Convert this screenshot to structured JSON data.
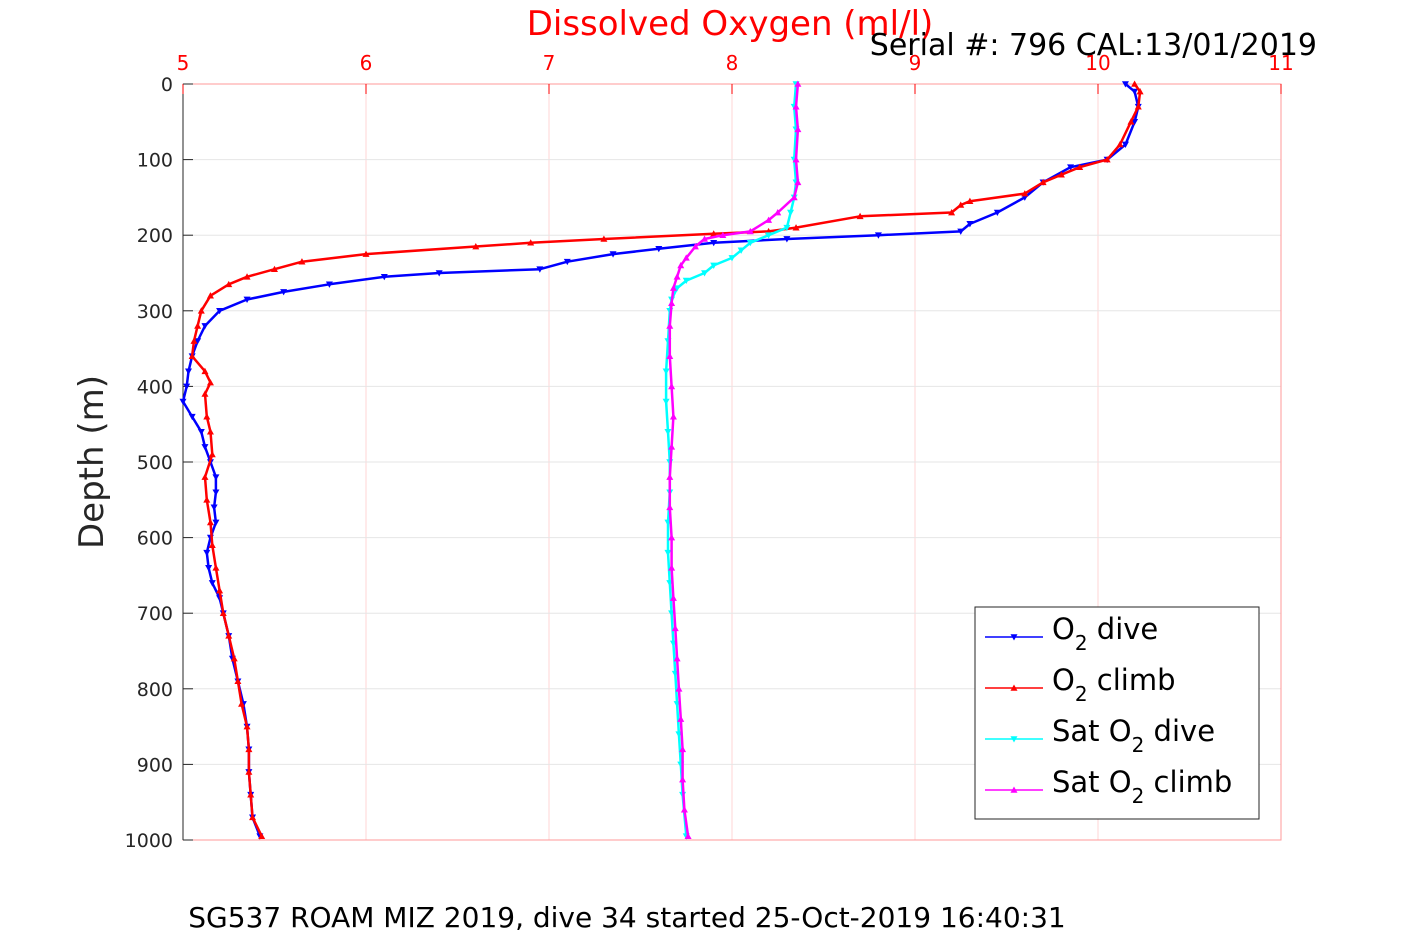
{
  "chart_data": {
    "type": "line",
    "title": "Dissolved Oxygen (ml/l)",
    "serial": "Serial #: 796  CAL:13/01/2019",
    "ylabel": "Depth (m)",
    "caption": "SG537 ROAM MIZ 2019, dive 34 started 25-Oct-2019 16:40:31",
    "xlim": [
      5,
      11
    ],
    "ylim": [
      0,
      1000
    ],
    "y_reversed": true,
    "x_axis_position": "top",
    "x_ticks": [
      "5",
      "6",
      "7",
      "8",
      "9",
      "10",
      "11"
    ],
    "y_ticks": [
      "0",
      "100",
      "200",
      "300",
      "400",
      "500",
      "600",
      "700",
      "800",
      "900",
      "1000"
    ],
    "grid": true,
    "legend_position": "bottom-right",
    "series": [
      {
        "name": "O2 dive",
        "legend_main": "O",
        "legend_sub": "2",
        "legend_rest": " dive",
        "color": "#0000ff",
        "marker": "triangle-down",
        "points": [
          [
            10.15,
            0
          ],
          [
            10.2,
            10
          ],
          [
            10.22,
            30
          ],
          [
            10.2,
            50
          ],
          [
            10.15,
            80
          ],
          [
            10.05,
            100
          ],
          [
            9.85,
            110
          ],
          [
            9.7,
            130
          ],
          [
            9.6,
            150
          ],
          [
            9.45,
            170
          ],
          [
            9.3,
            185
          ],
          [
            9.25,
            195
          ],
          [
            8.8,
            200
          ],
          [
            8.3,
            205
          ],
          [
            7.9,
            210
          ],
          [
            7.6,
            218
          ],
          [
            7.35,
            225
          ],
          [
            7.1,
            235
          ],
          [
            6.95,
            245
          ],
          [
            6.4,
            250
          ],
          [
            6.1,
            255
          ],
          [
            5.8,
            265
          ],
          [
            5.55,
            275
          ],
          [
            5.35,
            285
          ],
          [
            5.2,
            300
          ],
          [
            5.12,
            320
          ],
          [
            5.08,
            340
          ],
          [
            5.05,
            360
          ],
          [
            5.03,
            380
          ],
          [
            5.02,
            400
          ],
          [
            5.0,
            420
          ],
          [
            5.05,
            440
          ],
          [
            5.1,
            460
          ],
          [
            5.12,
            480
          ],
          [
            5.15,
            500
          ],
          [
            5.18,
            520
          ],
          [
            5.18,
            540
          ],
          [
            5.17,
            560
          ],
          [
            5.18,
            580
          ],
          [
            5.15,
            600
          ],
          [
            5.13,
            620
          ],
          [
            5.14,
            640
          ],
          [
            5.16,
            660
          ],
          [
            5.2,
            680
          ],
          [
            5.22,
            700
          ],
          [
            5.25,
            730
          ],
          [
            5.27,
            760
          ],
          [
            5.3,
            790
          ],
          [
            5.33,
            820
          ],
          [
            5.35,
            850
          ],
          [
            5.36,
            880
          ],
          [
            5.36,
            910
          ],
          [
            5.37,
            940
          ],
          [
            5.38,
            970
          ],
          [
            5.42,
            995
          ]
        ]
      },
      {
        "name": "O2 climb",
        "legend_main": "O",
        "legend_sub": "2",
        "legend_rest": " climb",
        "color": "#ff0000",
        "marker": "triangle-up",
        "points": [
          [
            10.2,
            0
          ],
          [
            10.23,
            10
          ],
          [
            10.22,
            30
          ],
          [
            10.18,
            50
          ],
          [
            10.12,
            80
          ],
          [
            10.05,
            100
          ],
          [
            9.9,
            110
          ],
          [
            9.8,
            120
          ],
          [
            9.7,
            130
          ],
          [
            9.6,
            145
          ],
          [
            9.3,
            155
          ],
          [
            9.25,
            160
          ],
          [
            9.2,
            170
          ],
          [
            8.7,
            175
          ],
          [
            8.35,
            190
          ],
          [
            8.2,
            195
          ],
          [
            7.9,
            198
          ],
          [
            7.3,
            205
          ],
          [
            6.9,
            210
          ],
          [
            6.6,
            215
          ],
          [
            6.0,
            225
          ],
          [
            5.65,
            235
          ],
          [
            5.5,
            245
          ],
          [
            5.35,
            255
          ],
          [
            5.25,
            265
          ],
          [
            5.15,
            280
          ],
          [
            5.1,
            300
          ],
          [
            5.08,
            320
          ],
          [
            5.06,
            340
          ],
          [
            5.05,
            360
          ],
          [
            5.12,
            380
          ],
          [
            5.15,
            395
          ],
          [
            5.12,
            410
          ],
          [
            5.13,
            440
          ],
          [
            5.15,
            460
          ],
          [
            5.16,
            490
          ],
          [
            5.12,
            520
          ],
          [
            5.13,
            550
          ],
          [
            5.15,
            580
          ],
          [
            5.16,
            610
          ],
          [
            5.18,
            640
          ],
          [
            5.2,
            670
          ],
          [
            5.22,
            700
          ],
          [
            5.25,
            730
          ],
          [
            5.28,
            760
          ],
          [
            5.3,
            790
          ],
          [
            5.32,
            820
          ],
          [
            5.35,
            850
          ],
          [
            5.36,
            880
          ],
          [
            5.36,
            910
          ],
          [
            5.37,
            940
          ],
          [
            5.38,
            970
          ],
          [
            5.43,
            995
          ]
        ]
      },
      {
        "name": "Sat O2 dive",
        "legend_main": "Sat O",
        "legend_sub": "2",
        "legend_rest": " dive",
        "color": "#00ffff",
        "marker": "triangle-down",
        "points": [
          [
            8.35,
            0
          ],
          [
            8.34,
            30
          ],
          [
            8.35,
            60
          ],
          [
            8.34,
            100
          ],
          [
            8.35,
            130
          ],
          [
            8.34,
            150
          ],
          [
            8.32,
            170
          ],
          [
            8.3,
            190
          ],
          [
            8.2,
            200
          ],
          [
            8.1,
            210
          ],
          [
            8.05,
            220
          ],
          [
            8.0,
            230
          ],
          [
            7.9,
            240
          ],
          [
            7.85,
            250
          ],
          [
            7.75,
            260
          ],
          [
            7.7,
            270
          ],
          [
            7.67,
            285
          ],
          [
            7.66,
            300
          ],
          [
            7.65,
            340
          ],
          [
            7.64,
            380
          ],
          [
            7.64,
            420
          ],
          [
            7.65,
            460
          ],
          [
            7.66,
            500
          ],
          [
            7.66,
            540
          ],
          [
            7.65,
            580
          ],
          [
            7.65,
            620
          ],
          [
            7.66,
            660
          ],
          [
            7.67,
            700
          ],
          [
            7.68,
            740
          ],
          [
            7.69,
            780
          ],
          [
            7.7,
            820
          ],
          [
            7.71,
            860
          ],
          [
            7.72,
            900
          ],
          [
            7.73,
            940
          ],
          [
            7.75,
            995
          ]
        ]
      },
      {
        "name": "Sat O2 climb",
        "legend_main": "Sat O",
        "legend_sub": "2",
        "legend_rest": " climb",
        "color": "#ff00ff",
        "marker": "triangle-up",
        "points": [
          [
            8.36,
            0
          ],
          [
            8.35,
            30
          ],
          [
            8.36,
            60
          ],
          [
            8.35,
            100
          ],
          [
            8.36,
            130
          ],
          [
            8.34,
            150
          ],
          [
            8.25,
            170
          ],
          [
            8.2,
            180
          ],
          [
            8.1,
            195
          ],
          [
            7.95,
            200
          ],
          [
            7.85,
            205
          ],
          [
            7.8,
            215
          ],
          [
            7.75,
            230
          ],
          [
            7.72,
            240
          ],
          [
            7.7,
            255
          ],
          [
            7.68,
            270
          ],
          [
            7.67,
            290
          ],
          [
            7.66,
            320
          ],
          [
            7.66,
            360
          ],
          [
            7.67,
            400
          ],
          [
            7.68,
            440
          ],
          [
            7.67,
            480
          ],
          [
            7.66,
            520
          ],
          [
            7.66,
            560
          ],
          [
            7.67,
            600
          ],
          [
            7.67,
            640
          ],
          [
            7.68,
            680
          ],
          [
            7.69,
            720
          ],
          [
            7.7,
            760
          ],
          [
            7.71,
            800
          ],
          [
            7.72,
            840
          ],
          [
            7.73,
            880
          ],
          [
            7.73,
            920
          ],
          [
            7.74,
            960
          ],
          [
            7.76,
            995
          ]
        ]
      }
    ]
  }
}
